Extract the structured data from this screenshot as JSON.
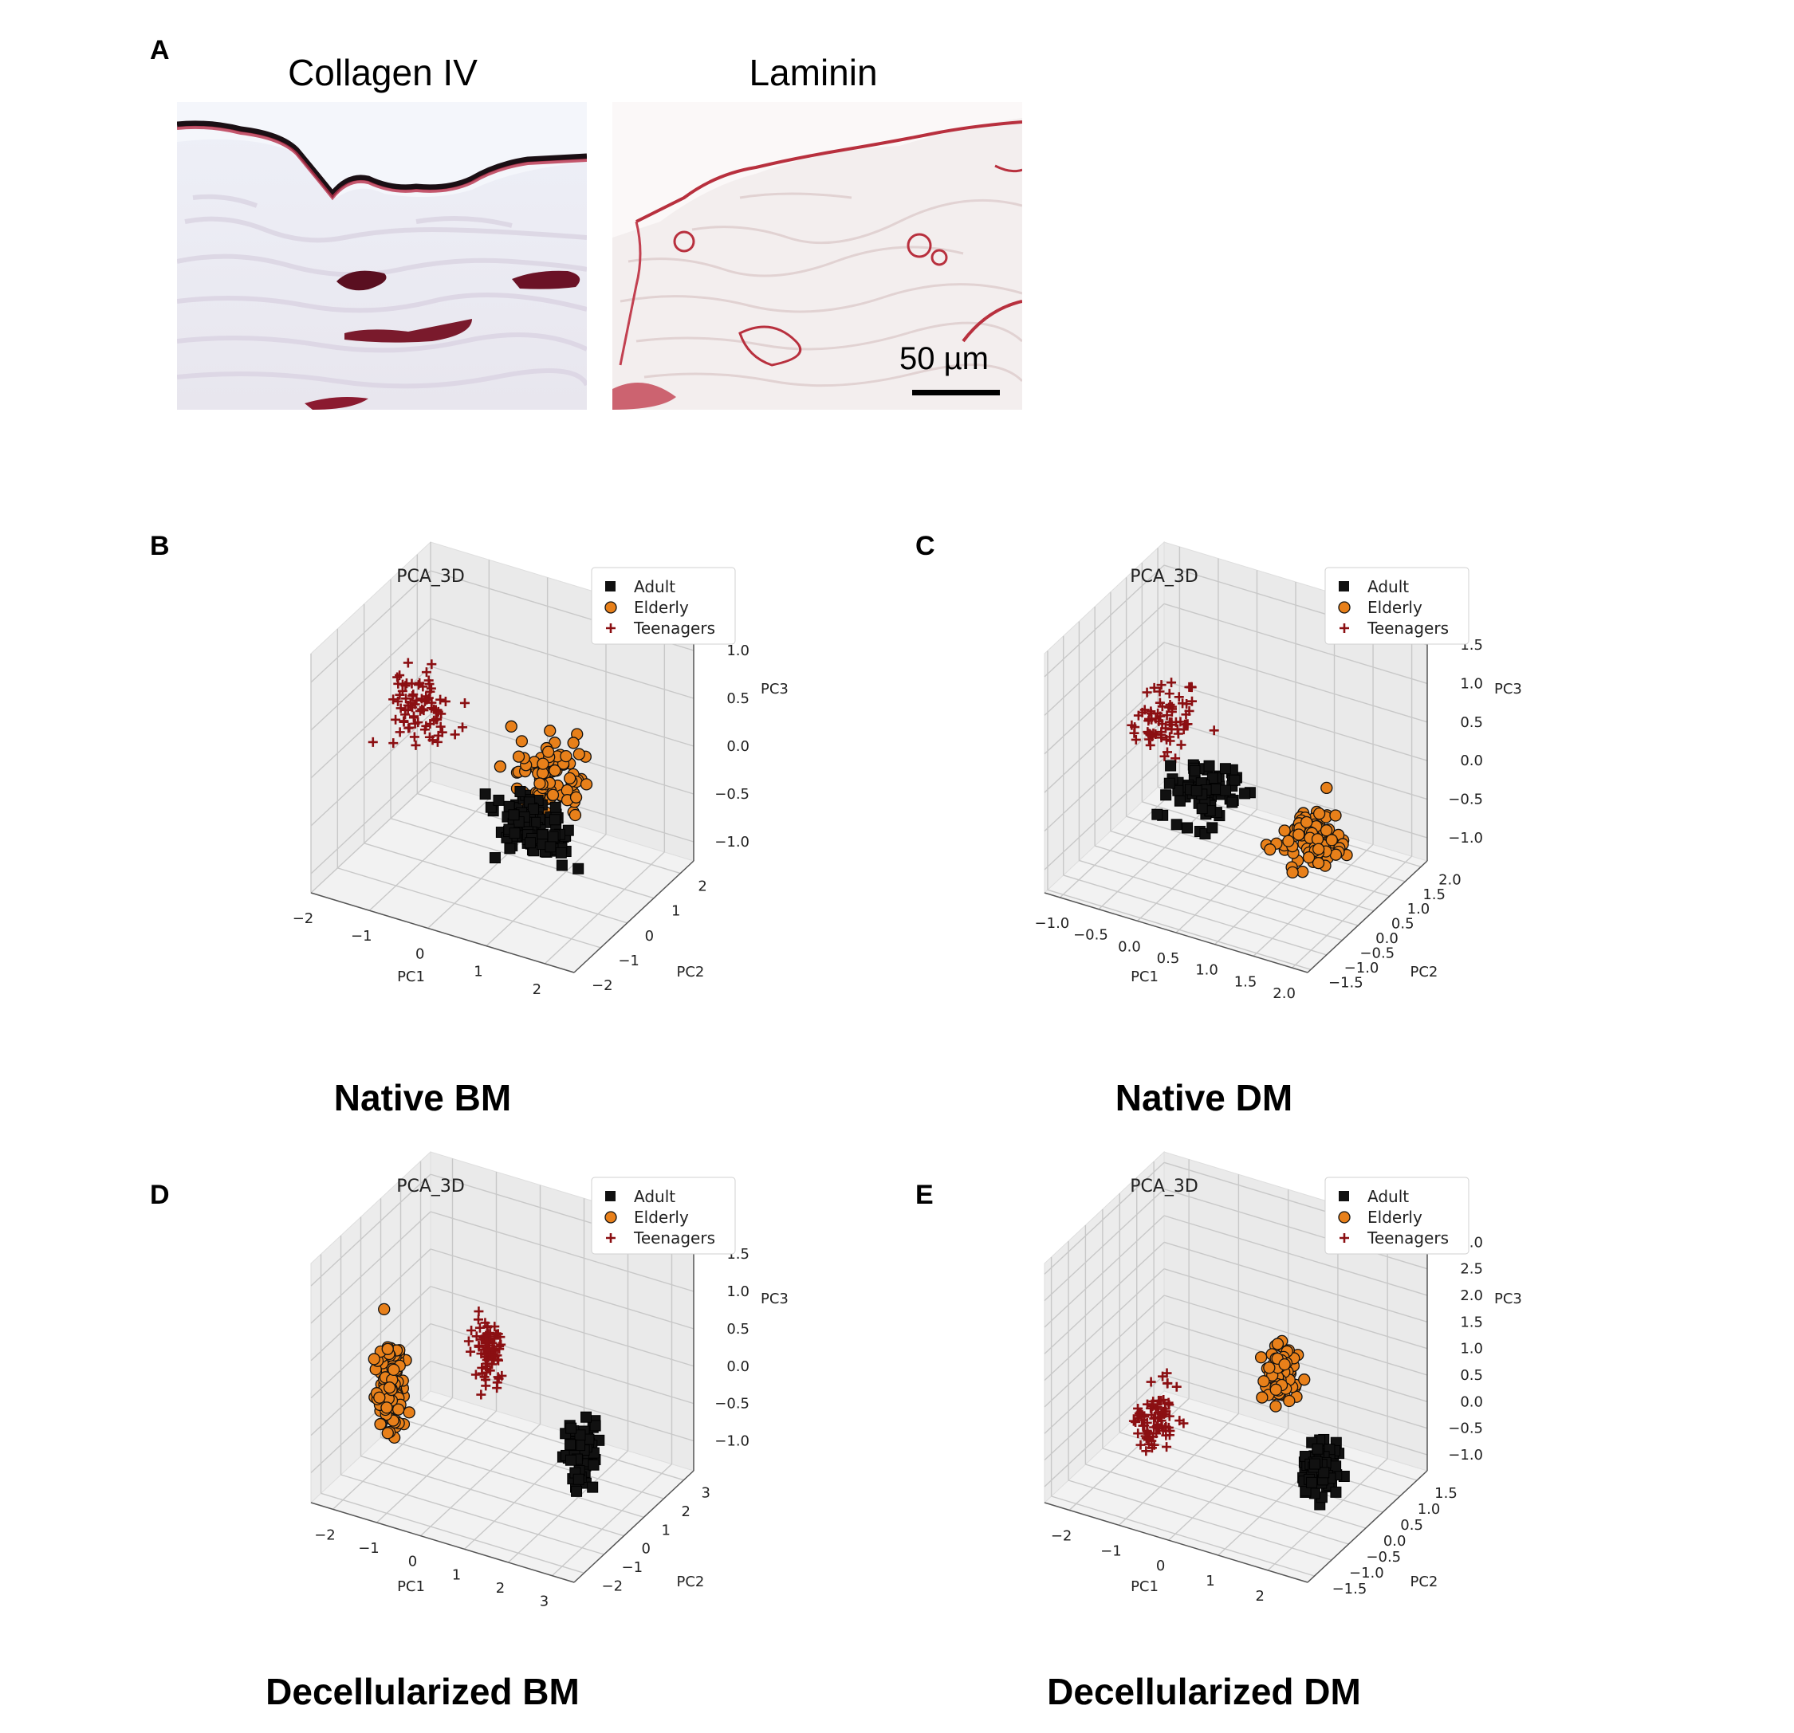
{
  "panel_a": {
    "letter": "A",
    "left_title": "Collagen IV",
    "right_title": "Laminin",
    "scale_bar": "50 µm"
  },
  "colors": {
    "adult": "#111111",
    "elderly": "#e8801a",
    "teenagers": "#8b0f12"
  },
  "chart_data": [
    {
      "id": "B",
      "type": "scatter",
      "title": "PCA_3D",
      "caption": "Native BM",
      "xlabel": "PC1",
      "ylabel": "PC2",
      "zlabel": "PC3",
      "xticks": [
        "−2",
        "−1",
        "0",
        "1",
        "2"
      ],
      "yticks": [
        "−2",
        "−1",
        "0",
        "1",
        "2"
      ],
      "zticks": [
        "1.0",
        "0.5",
        "0.0",
        "−0.5",
        "−1.0"
      ],
      "xlim": [
        -2,
        2.5
      ],
      "ylim": [
        -2,
        2.5
      ],
      "zlim": [
        -1.2,
        1.3
      ],
      "legend": [
        "Adult",
        "Elderly",
        "Teenagers"
      ],
      "legend_position": "top-right",
      "series": [
        {
          "name": "Adult",
          "center": [
            0.9,
            -0.1,
            -0.45
          ],
          "spread": [
            0.6,
            0.6,
            0.25
          ],
          "n": 110
        },
        {
          "name": "Elderly",
          "center": [
            0.9,
            0.7,
            -0.15
          ],
          "spread": [
            0.6,
            0.5,
            0.35
          ],
          "n": 80
        },
        {
          "name": "Teenagers",
          "center": [
            -1.2,
            0.3,
            0.3
          ],
          "spread": [
            0.45,
            0.6,
            0.35
          ],
          "n": 80
        }
      ]
    },
    {
      "id": "C",
      "type": "scatter",
      "title": "PCA_3D",
      "caption": "Native DM",
      "xlabel": "PC1",
      "ylabel": "PC2",
      "zlabel": "PC3",
      "xticks": [
        "−1.0",
        "−0.5",
        "0.0",
        "0.5",
        "1.0",
        "1.5",
        "2.0"
      ],
      "yticks": [
        "−1.5",
        "−1.0",
        "−0.5",
        "0.0",
        "0.5",
        "1.0",
        "1.5",
        "2.0"
      ],
      "zticks": [
        "1.5",
        "1.0",
        "0.5",
        "0.0",
        "−0.5",
        "−1.0"
      ],
      "xlim": [
        -1.2,
        2.2
      ],
      "ylim": [
        -1.6,
        2.2
      ],
      "zlim": [
        -1.3,
        1.8
      ],
      "legend": [
        "Adult",
        "Elderly",
        "Teenagers"
      ],
      "legend_position": "top-right",
      "series": [
        {
          "name": "Adult",
          "center": [
            0.2,
            0.1,
            -0.2
          ],
          "spread": [
            0.4,
            0.5,
            0.4
          ],
          "n": 75
        },
        {
          "name": "Elderly",
          "center": [
            1.5,
            0.3,
            -0.5
          ],
          "spread": [
            0.4,
            0.6,
            0.3
          ],
          "n": 85
        },
        {
          "name": "Teenagers",
          "center": [
            -0.6,
            0.7,
            0.2
          ],
          "spread": [
            0.35,
            0.5,
            0.4
          ],
          "n": 75
        }
      ]
    },
    {
      "id": "D",
      "type": "scatter",
      "title": "PCA_3D",
      "caption": "Decellularized BM",
      "xlabel": "PC1",
      "ylabel": "PC2",
      "zlabel": "PC3",
      "xticks": [
        "−2",
        "−1",
        "0",
        "1",
        "2",
        "3"
      ],
      "yticks": [
        "−2",
        "−1",
        "0",
        "1",
        "2",
        "3"
      ],
      "zticks": [
        "1.5",
        "1.0",
        "0.5",
        "0.0",
        "−0.5",
        "−1.0"
      ],
      "xlim": [
        -2.5,
        3.5
      ],
      "ylim": [
        -2.5,
        3.5
      ],
      "zlim": [
        -1.4,
        1.8
      ],
      "legend": [
        "Adult",
        "Elderly",
        "Teenagers"
      ],
      "legend_position": "top-right",
      "series": [
        {
          "name": "Adult",
          "center": [
            2.3,
            0.5,
            -0.6
          ],
          "spread": [
            0.3,
            0.4,
            0.5
          ],
          "n": 75
        },
        {
          "name": "Elderly",
          "center": [
            -1.9,
            0.2,
            -0.4
          ],
          "spread": [
            0.3,
            0.5,
            0.6
          ],
          "n": 90
        },
        {
          "name": "Teenagers",
          "center": [
            0.1,
            0.7,
            0.3
          ],
          "spread": [
            0.3,
            0.4,
            0.45
          ],
          "n": 80
        }
      ]
    },
    {
      "id": "E",
      "type": "scatter",
      "title": "PCA_3D",
      "caption": "Decellularized DM",
      "xlabel": "PC1",
      "ylabel": "PC2",
      "zlabel": "PC3",
      "xticks": [
        "−2",
        "−1",
        "0",
        "1",
        "2"
      ],
      "yticks": [
        "−1.5",
        "−1.0",
        "−0.5",
        "0.0",
        "0.5",
        "1.0",
        "1.5"
      ],
      "zticks": [
        "3.0",
        "2.5",
        "2.0",
        "1.5",
        "1.0",
        "0.5",
        "0.0",
        "−0.5",
        "−1.0"
      ],
      "xlim": [
        -2.5,
        2.8
      ],
      "ylim": [
        -1.7,
        1.8
      ],
      "zlim": [
        -1.3,
        3.2
      ],
      "legend": [
        "Adult",
        "Elderly",
        "Teenagers"
      ],
      "legend_position": "top-right",
      "series": [
        {
          "name": "Adult",
          "center": [
            2.0,
            -0.2,
            -0.3
          ],
          "spread": [
            0.3,
            0.4,
            0.5
          ],
          "n": 80
        },
        {
          "name": "Elderly",
          "center": [
            0.7,
            0.6,
            0.7
          ],
          "spread": [
            0.3,
            0.35,
            0.5
          ],
          "n": 85
        },
        {
          "name": "Teenagers",
          "center": [
            -1.3,
            -0.2,
            -0.3
          ],
          "spread": [
            0.35,
            0.45,
            0.5
          ],
          "n": 80
        }
      ]
    }
  ]
}
